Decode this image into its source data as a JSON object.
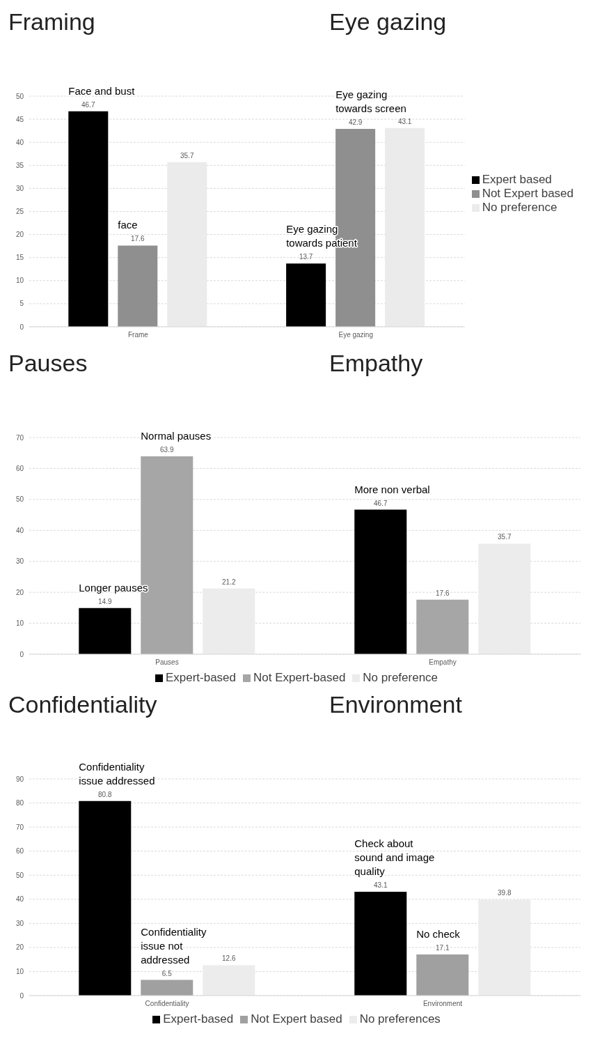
{
  "chart_data": [
    {
      "type": "bar",
      "title": "Framing",
      "subtitle": "Eye gazing",
      "categories": [
        "Frame",
        "Eye gazing"
      ],
      "series": [
        {
          "name": "Expert based",
          "color": "#000000",
          "values": [
            46.7,
            13.7
          ]
        },
        {
          "name": "Not Expert based",
          "color": "#8f8f8f",
          "values": [
            17.6,
            42.9
          ]
        },
        {
          "name": "No preference",
          "color": "#ebebeb",
          "values": [
            35.7,
            43.1
          ]
        }
      ],
      "ylim": [
        0,
        50
      ],
      "yticks": [
        0,
        5,
        10,
        15,
        20,
        25,
        30,
        35,
        40,
        45,
        50
      ],
      "grid": "y",
      "legend": "right",
      "data_labels": true,
      "annotations": [
        "Face and bust",
        {
          "text": "face",
          "x": "Frame",
          "y": 17.6
        },
        "Eye gazing towards patient",
        {
          "text": "Eye gazing towards screen",
          "x": "Eye gazing",
          "y": 42.9
        }
      ]
    },
    {
      "type": "bar",
      "title": "Pauses",
      "subtitle": "Empathy",
      "categories": [
        "Pauses",
        "Empathy"
      ],
      "series": [
        {
          "name": "Expert-based",
          "color": "#000000",
          "values": [
            14.9,
            46.7
          ]
        },
        {
          "name": "Not Expert-based",
          "color": "#a6a6a6",
          "values": [
            63.9,
            17.6
          ]
        },
        {
          "name": "No preference",
          "color": "#ececec",
          "values": [
            21.2,
            35.7
          ]
        }
      ],
      "ylim": [
        0,
        70
      ],
      "yticks": [
        0,
        10,
        20,
        30,
        40,
        50,
        60,
        70
      ],
      "grid": "y",
      "legend": "bottom",
      "data_labels": true,
      "annotations": [
        "Longer pauses",
        {
          "text": "Normal pauses",
          "x": "Pauses",
          "y": 63.9
        },
        "More non verbal"
      ]
    },
    {
      "type": "bar",
      "title": "Confidentiality",
      "subtitle": "Environment",
      "categories": [
        "Confidentiality",
        "Environment"
      ],
      "series": [
        {
          "name": "Expert-based",
          "color": "#000000",
          "values": [
            80.8,
            43.1
          ]
        },
        {
          "name": "Not Expert based",
          "color": "#a0a0a0",
          "values": [
            6.5,
            17.1
          ]
        },
        {
          "name": "No preferences",
          "color": "#ececec",
          "values": [
            12.6,
            39.8
          ]
        }
      ],
      "ylim": [
        0,
        90
      ],
      "yticks": [
        0,
        10,
        20,
        30,
        40,
        50,
        60,
        70,
        80,
        90
      ],
      "grid": "y",
      "legend": "bottom",
      "data_labels": true,
      "annotations": [
        "Confidentiality issue addressed",
        {
          "text": "Confidentiality issue not addressed",
          "x": "Confidentiality",
          "y": 6.5
        },
        "Check about sound and image quality",
        {
          "text": "No check",
          "x": "Environment",
          "y": 17.1
        }
      ]
    }
  ]
}
